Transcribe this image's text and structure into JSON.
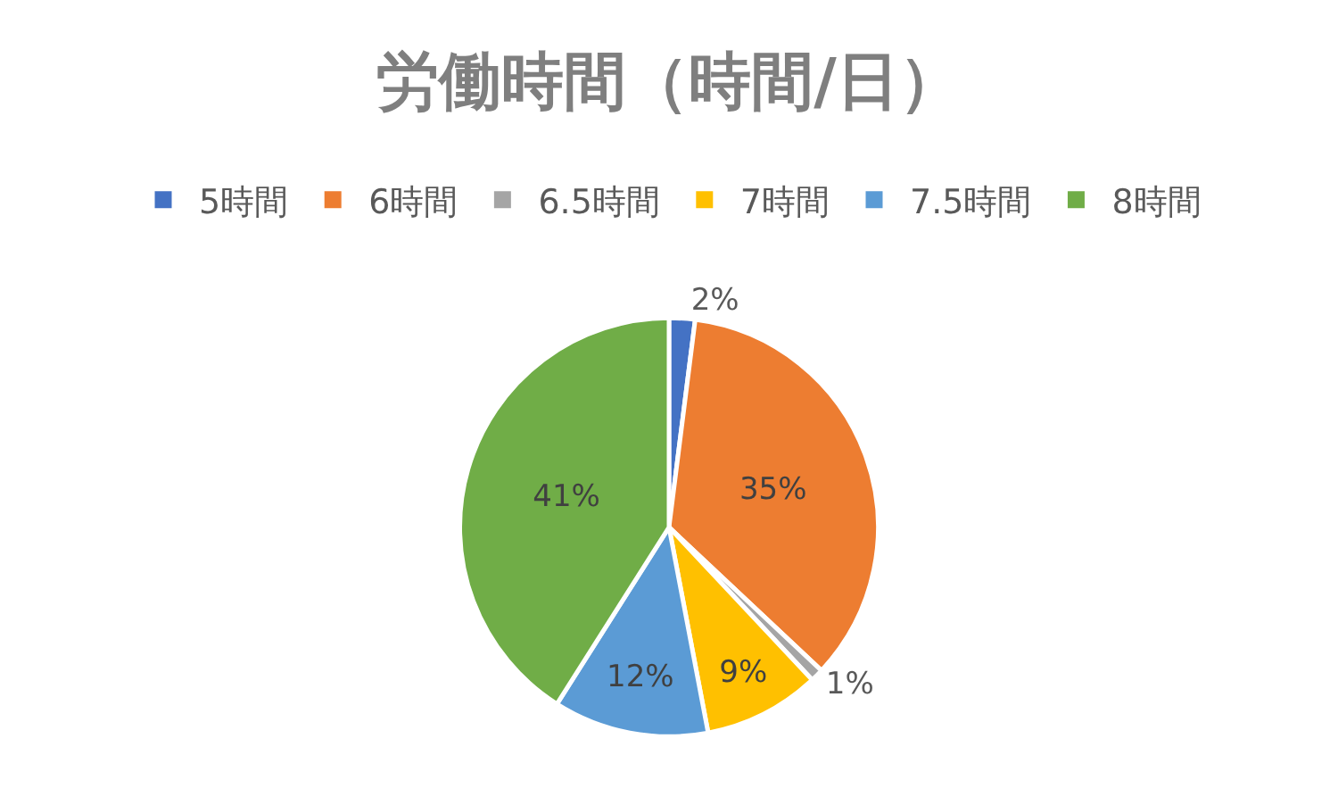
{
  "chart_data": {
    "type": "pie",
    "title": "労働時間（時間/日）",
    "categories": [
      "5時間",
      "6時間",
      "6.5時間",
      "7時間",
      "7.5時間",
      "8時間"
    ],
    "values": [
      2,
      35,
      1,
      9,
      12,
      41
    ],
    "value_labels": [
      "2%",
      "35%",
      "1%",
      "9%",
      "12%",
      "41%"
    ],
    "colors": [
      "#4472c4",
      "#ed7d31",
      "#a5a5a5",
      "#ffc000",
      "#5b9bd5",
      "#70ad47"
    ],
    "legend": "top"
  }
}
